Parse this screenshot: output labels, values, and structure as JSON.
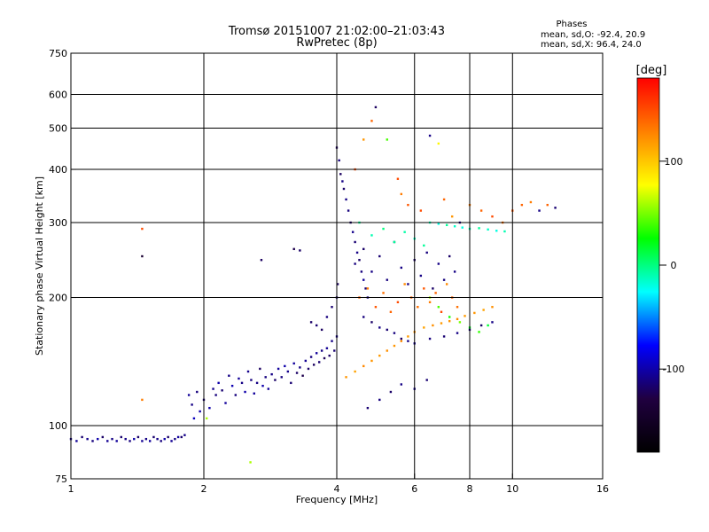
{
  "chart_data": {
    "type": "scatter",
    "title": "Tromsø 20151007 21:02:00–21:03:43",
    "subtitle": "RwPretec (8p)",
    "xlabel": "Frequency [MHz]",
    "ylabel": "Stationary phase Virtual Height [km]",
    "x_scale": "log",
    "y_scale": "log",
    "xlim": [
      1,
      16
    ],
    "ylim": [
      75,
      750
    ],
    "x_ticks": [
      1,
      2,
      4,
      6,
      8,
      10,
      16
    ],
    "y_ticks": [
      75,
      100,
      200,
      300,
      400,
      500,
      600,
      750
    ],
    "grid": true,
    "stats": {
      "heading": "Phases",
      "line1": "mean, sd,O: -92.4, 20.9",
      "line2": "mean, sd,X:  96.4, 24.0"
    },
    "colorbar": {
      "label": "[deg]",
      "range": [
        -180,
        180
      ],
      "ticks": [
        100,
        0,
        -100
      ],
      "colors": [
        "#ff0000",
        "#ff8000",
        "#ffff00",
        "#00ff00",
        "#00ffff",
        "#0000ff",
        "#200040",
        "#000000"
      ]
    },
    "series": [
      {
        "points": [
          [
            1.0,
            93,
            -110
          ],
          [
            1.03,
            92,
            -105
          ],
          [
            1.06,
            94,
            -115
          ],
          [
            1.09,
            93,
            -108
          ],
          [
            1.12,
            92,
            -112
          ],
          [
            1.15,
            93,
            -100
          ],
          [
            1.18,
            94,
            -118
          ],
          [
            1.21,
            92,
            -106
          ],
          [
            1.24,
            93,
            -110
          ],
          [
            1.27,
            92,
            -104
          ],
          [
            1.3,
            94,
            -116
          ],
          [
            1.33,
            93,
            -109
          ],
          [
            1.36,
            92,
            -112
          ],
          [
            1.39,
            93,
            -100
          ],
          [
            1.42,
            94,
            -118
          ],
          [
            1.45,
            92,
            -106
          ],
          [
            1.48,
            93,
            -110
          ],
          [
            1.51,
            92,
            -104
          ],
          [
            1.54,
            94,
            -116
          ],
          [
            1.57,
            93,
            -109
          ],
          [
            1.6,
            92,
            -112
          ],
          [
            1.63,
            93,
            -100
          ],
          [
            1.66,
            94,
            -118
          ],
          [
            1.69,
            92,
            -106
          ],
          [
            1.72,
            93,
            -110
          ],
          [
            1.75,
            94,
            -104
          ],
          [
            1.78,
            94,
            -116
          ],
          [
            1.81,
            95,
            -109
          ],
          [
            1.45,
            290,
            150
          ],
          [
            1.45,
            250,
            -140
          ],
          [
            1.45,
            115,
            130
          ],
          [
            2.55,
            82,
            60
          ],
          [
            1.85,
            118,
            -105
          ],
          [
            1.88,
            112,
            -110
          ],
          [
            1.9,
            104,
            -95
          ],
          [
            1.93,
            120,
            -112
          ],
          [
            1.96,
            108,
            -100
          ],
          [
            2.0,
            115,
            -115
          ],
          [
            2.03,
            104,
            60
          ],
          [
            2.06,
            110,
            -100
          ],
          [
            2.1,
            122,
            -108
          ],
          [
            2.13,
            118,
            -112
          ],
          [
            2.16,
            126,
            -100
          ],
          [
            2.2,
            121,
            -115
          ],
          [
            2.24,
            113,
            -104
          ],
          [
            2.28,
            131,
            -110
          ],
          [
            2.32,
            124,
            -98
          ],
          [
            2.36,
            118,
            -112
          ],
          [
            2.4,
            129,
            -105
          ],
          [
            2.44,
            126,
            -110
          ],
          [
            2.48,
            120,
            -100
          ],
          [
            2.52,
            134,
            -108
          ],
          [
            2.56,
            128,
            -112
          ],
          [
            2.6,
            119,
            -104
          ],
          [
            2.64,
            126,
            -110
          ],
          [
            2.68,
            136,
            -120
          ],
          [
            2.72,
            124,
            -100
          ],
          [
            2.76,
            130,
            -112
          ],
          [
            2.8,
            122,
            -105
          ],
          [
            2.85,
            132,
            -110
          ],
          [
            2.9,
            128,
            -118
          ],
          [
            2.95,
            136,
            -104
          ],
          [
            3.0,
            130,
            -112
          ],
          [
            3.05,
            138,
            -100
          ],
          [
            3.1,
            134,
            -108
          ],
          [
            3.15,
            126,
            -115
          ],
          [
            3.2,
            140,
            -104
          ],
          [
            3.25,
            133,
            -118
          ],
          [
            3.3,
            137,
            -110
          ],
          [
            3.35,
            131,
            -125
          ],
          [
            3.4,
            142,
            -106
          ],
          [
            3.45,
            136,
            -118
          ],
          [
            3.5,
            145,
            -112
          ],
          [
            3.55,
            139,
            -120
          ],
          [
            3.6,
            148,
            -104
          ],
          [
            3.65,
            141,
            -116
          ],
          [
            3.7,
            150,
            -110
          ],
          [
            3.75,
            144,
            -122
          ],
          [
            3.8,
            152,
            -106
          ],
          [
            3.85,
            146,
            -118
          ],
          [
            3.9,
            158,
            -110
          ],
          [
            3.95,
            150,
            -115
          ],
          [
            4.0,
            162,
            -108
          ],
          [
            2.7,
            245,
            -120
          ],
          [
            3.2,
            260,
            -125
          ],
          [
            3.3,
            258,
            -118
          ],
          [
            3.5,
            175,
            -118
          ],
          [
            3.6,
            172,
            -115
          ],
          [
            3.7,
            168,
            -120
          ],
          [
            3.8,
            180,
            -112
          ],
          [
            3.9,
            190,
            -115
          ],
          [
            4.0,
            200,
            -110
          ],
          [
            4.02,
            215,
            -120
          ],
          [
            4.0,
            450,
            -120
          ],
          [
            4.05,
            420,
            -112
          ],
          [
            4.08,
            390,
            -120
          ],
          [
            4.12,
            375,
            -110
          ],
          [
            4.15,
            360,
            -118
          ],
          [
            4.2,
            340,
            -110
          ],
          [
            4.25,
            320,
            -112
          ],
          [
            4.3,
            300,
            -118
          ],
          [
            4.35,
            285,
            -108
          ],
          [
            4.4,
            270,
            -115
          ],
          [
            4.45,
            255,
            -110
          ],
          [
            4.5,
            245,
            -118
          ],
          [
            4.55,
            230,
            -112
          ],
          [
            4.6,
            220,
            -105
          ],
          [
            4.65,
            210,
            -115
          ],
          [
            4.7,
            200,
            -110
          ],
          [
            4.4,
            400,
            150
          ],
          [
            4.6,
            470,
            120
          ],
          [
            4.8,
            520,
            140
          ],
          [
            4.9,
            560,
            -120
          ],
          [
            5.2,
            470,
            40
          ],
          [
            5.5,
            380,
            150
          ],
          [
            5.6,
            350,
            130
          ],
          [
            5.8,
            330,
            145
          ],
          [
            6.2,
            320,
            150
          ],
          [
            6.5,
            480,
            -110
          ],
          [
            6.8,
            460,
            80
          ],
          [
            7.0,
            340,
            140
          ],
          [
            7.3,
            310,
            120
          ],
          [
            7.6,
            300,
            -110
          ],
          [
            8.0,
            330,
            130
          ],
          [
            8.5,
            320,
            140
          ],
          [
            9.0,
            310,
            150
          ],
          [
            9.5,
            300,
            135
          ],
          [
            10.0,
            320,
            145
          ],
          [
            10.5,
            330,
            140
          ],
          [
            11.0,
            335,
            130
          ],
          [
            11.5,
            320,
            -110
          ],
          [
            12.0,
            330,
            140
          ],
          [
            12.5,
            325,
            -115
          ],
          [
            6.5,
            300,
            -10
          ],
          [
            6.8,
            298,
            -20
          ],
          [
            7.1,
            296,
            -5
          ],
          [
            7.4,
            294,
            -15
          ],
          [
            7.7,
            292,
            -20
          ],
          [
            8.0,
            290,
            -10
          ],
          [
            8.4,
            291,
            -5
          ],
          [
            8.8,
            289,
            -15
          ],
          [
            9.2,
            287,
            -20
          ],
          [
            9.6,
            286,
            -10
          ],
          [
            4.2,
            130,
            120
          ],
          [
            4.4,
            134,
            115
          ],
          [
            4.6,
            138,
            125
          ],
          [
            4.8,
            142,
            120
          ],
          [
            5.0,
            146,
            118
          ],
          [
            5.2,
            150,
            122
          ],
          [
            5.4,
            154,
            120
          ],
          [
            5.6,
            158,
            125
          ],
          [
            5.8,
            162,
            118
          ],
          [
            6.0,
            166,
            120
          ],
          [
            6.3,
            170,
            115
          ],
          [
            6.6,
            172,
            122
          ],
          [
            6.9,
            174,
            118
          ],
          [
            7.2,
            176,
            120
          ],
          [
            7.5,
            178,
            125
          ],
          [
            7.8,
            181,
            118
          ],
          [
            8.2,
            184,
            120
          ],
          [
            8.6,
            187,
            115
          ],
          [
            9.0,
            190,
            122
          ],
          [
            4.6,
            180,
            -112
          ],
          [
            4.8,
            175,
            -118
          ],
          [
            5.0,
            170,
            -110
          ],
          [
            5.2,
            168,
            -115
          ],
          [
            5.4,
            165,
            -112
          ],
          [
            5.6,
            160,
            -118
          ],
          [
            5.8,
            158,
            -110
          ],
          [
            6.0,
            156,
            -108
          ],
          [
            6.5,
            160,
            -112
          ],
          [
            7.0,
            162,
            -115
          ],
          [
            7.5,
            165,
            -110
          ],
          [
            8.0,
            168,
            -112
          ],
          [
            8.5,
            172,
            -118
          ],
          [
            9.0,
            175,
            -110
          ],
          [
            4.7,
            110,
            -115
          ],
          [
            5.0,
            115,
            -112
          ],
          [
            5.3,
            120,
            -118
          ],
          [
            5.6,
            125,
            -110
          ],
          [
            6.0,
            122,
            -108
          ],
          [
            6.4,
            128,
            -115
          ],
          [
            4.4,
            240,
            -112
          ],
          [
            4.6,
            260,
            -118
          ],
          [
            4.8,
            230,
            -110
          ],
          [
            5.0,
            250,
            -115
          ],
          [
            5.2,
            220,
            -112
          ],
          [
            5.4,
            270,
            -118
          ],
          [
            5.6,
            235,
            -110
          ],
          [
            5.8,
            215,
            -112
          ],
          [
            6.0,
            245,
            -118
          ],
          [
            6.2,
            225,
            -110
          ],
          [
            6.4,
            255,
            -112
          ],
          [
            6.6,
            210,
            -118
          ],
          [
            6.8,
            240,
            -110
          ],
          [
            7.0,
            220,
            -112
          ],
          [
            7.2,
            250,
            -118
          ],
          [
            7.4,
            230,
            -110
          ],
          [
            4.5,
            200,
            140
          ],
          [
            4.7,
            210,
            130
          ],
          [
            4.9,
            190,
            145
          ],
          [
            5.1,
            205,
            135
          ],
          [
            5.3,
            185,
            140
          ],
          [
            5.5,
            195,
            150
          ],
          [
            5.7,
            215,
            125
          ],
          [
            5.9,
            200,
            140
          ],
          [
            6.1,
            190,
            135
          ],
          [
            6.3,
            210,
            145
          ],
          [
            6.5,
            195,
            130
          ],
          [
            6.7,
            205,
            140
          ],
          [
            6.9,
            185,
            150
          ],
          [
            7.1,
            215,
            125
          ],
          [
            7.3,
            200,
            140
          ],
          [
            7.5,
            190,
            135
          ],
          [
            4.5,
            300,
            -5
          ],
          [
            4.8,
            280,
            -10
          ],
          [
            5.1,
            290,
            0
          ],
          [
            5.4,
            270,
            -5
          ],
          [
            5.7,
            285,
            -8
          ],
          [
            6.0,
            275,
            -12
          ],
          [
            6.3,
            265,
            -5
          ],
          [
            6.5,
            200,
            60
          ],
          [
            6.8,
            190,
            40
          ],
          [
            7.2,
            180,
            30
          ],
          [
            7.6,
            175,
            50
          ],
          [
            8.0,
            170,
            20
          ],
          [
            8.4,
            166,
            35
          ],
          [
            8.8,
            172,
            15
          ]
        ]
      }
    ]
  }
}
